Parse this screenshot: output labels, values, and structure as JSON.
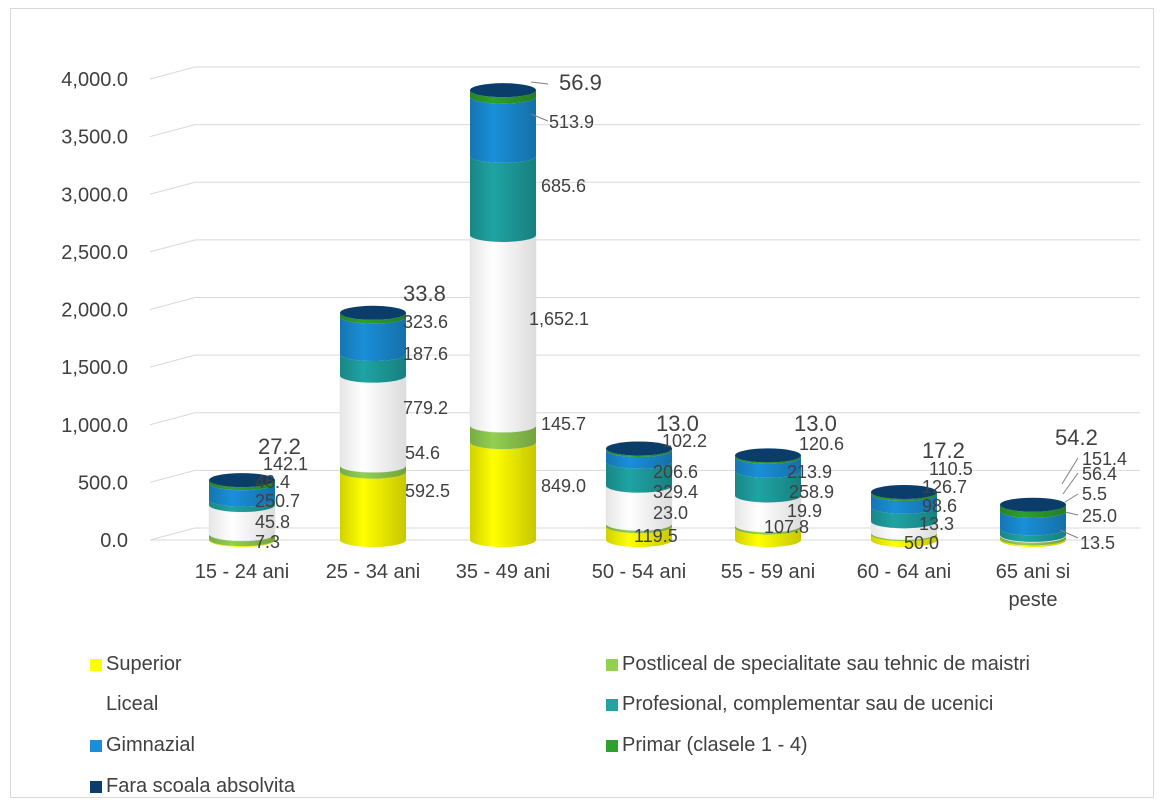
{
  "chart_data": {
    "type": "bar",
    "stacked": true,
    "style": "3d-cylinder",
    "categories": [
      "15 - 24 ani",
      "25 - 34 ani",
      "35 - 49 ani",
      "50 - 54 ani",
      "55 - 59 ani",
      "60 - 64 ani",
      "65 ani si peste"
    ],
    "series": [
      {
        "name": "Superior",
        "color": "#ffff00",
        "values": [
          7.3,
          592.5,
          849.0,
          119.5,
          107.8,
          50.0,
          13.5
        ]
      },
      {
        "name": "Postliceal de specialitate sau tehnic de maistri",
        "color": "#92d050",
        "values": [
          45.8,
          54.6,
          145.7,
          23.0,
          19.9,
          13.3,
          25.0
        ]
      },
      {
        "name": "Liceal",
        "color": "#ffffff",
        "values": [
          250.7,
          779.2,
          1652.1,
          329.4,
          258.9,
          98.6,
          5.5
        ]
      },
      {
        "name": "Profesional, complementar sau de ucenici",
        "color": "#1fa3a3",
        "values": [
          46.4,
          187.6,
          685.6,
          206.6,
          213.9,
          126.7,
          56.4
        ]
      },
      {
        "name": "Gimnazial",
        "color": "#1a8fd8",
        "values": [
          142.1,
          323.6,
          513.9,
          102.2,
          120.6,
          110.5,
          151.4
        ]
      },
      {
        "name": "Primar (clasele 1 - 4)",
        "color": "#2ea02e",
        "values": [
          27.2,
          33.8,
          56.9,
          13.0,
          13.0,
          17.2,
          54.2
        ]
      },
      {
        "name": "Fara scoala absolvita",
        "color": "#0b3d6b",
        "values": [
          null,
          null,
          null,
          null,
          null,
          null,
          null
        ]
      }
    ],
    "ylim": [
      0,
      4000
    ],
    "yticks": [
      "0.0",
      "500.0",
      "1,000.0",
      "1,500.0",
      "2,000.0",
      "2,500.0",
      "3,000.0",
      "3,500.0",
      "4,000.0"
    ],
    "data_labels": [
      [
        "7.3",
        "45.8",
        "250.7",
        "46.4",
        "142.1",
        "27.2"
      ],
      [
        "592.5",
        "54.6",
        "779.2",
        "187.6",
        "323.6",
        "33.8"
      ],
      [
        "849.0",
        "145.7",
        "1,652.1",
        "685.6",
        "513.9",
        "56.9"
      ],
      [
        "119.5",
        "23.0",
        "329.4",
        "206.6",
        "102.2",
        "13.0"
      ],
      [
        "107.8",
        "19.9",
        "258.9",
        "213.9",
        "120.6",
        "13.0"
      ],
      [
        "50.0",
        "13.3",
        "98.6",
        "126.7",
        "110.5",
        "17.2"
      ],
      [
        "13.5",
        "25.0",
        "5.5",
        "56.4",
        "151.4",
        "54.2"
      ]
    ],
    "grid": true,
    "legend_position": "bottom"
  }
}
